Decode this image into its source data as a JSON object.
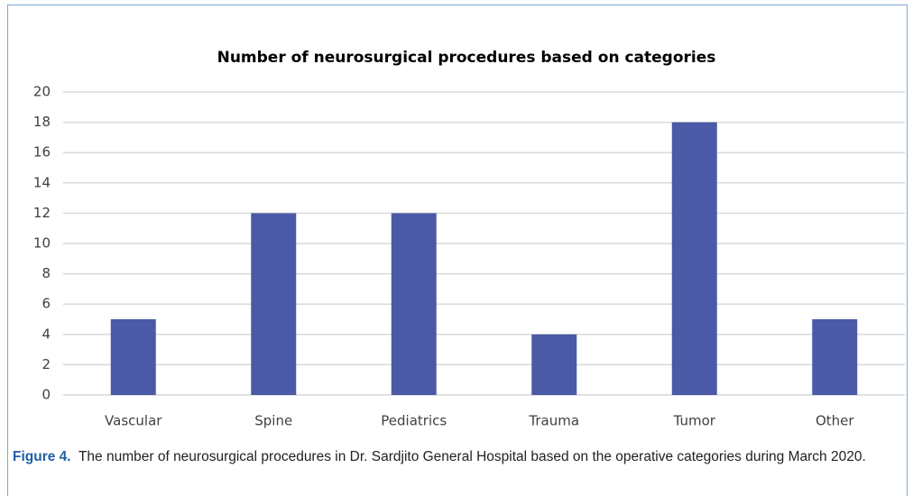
{
  "chart_data": {
    "type": "bar",
    "title": "Number of neurosurgical procedures based on categories",
    "categories": [
      "Vascular",
      "Spine",
      "Pediatrics",
      "Trauma",
      "Tumor",
      "Other"
    ],
    "values": [
      5,
      12,
      12,
      4,
      18,
      5
    ],
    "color": "#4a5aa6",
    "ylim": [
      0,
      20
    ],
    "yticks": [
      0,
      2,
      4,
      6,
      8,
      10,
      12,
      14,
      16,
      18,
      20
    ],
    "grid": true
  },
  "caption": {
    "label": "Figure 4.",
    "text": "The number of neurosurgical procedures in Dr. Sardjito General Hospital based on the operative categories during March 2020."
  }
}
